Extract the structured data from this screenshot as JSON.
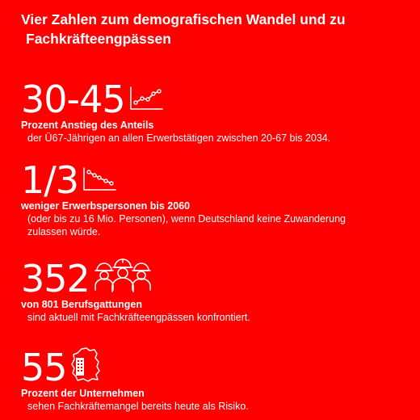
{
  "title": {
    "line1": "Vier Zahlen zum demografischen Wandel und zu",
    "line2": "Fachkräfteengpässen"
  },
  "stats": [
    {
      "number": "30-45",
      "icon": "line-chart-up-icon",
      "lead": "Prozent Anstieg des Anteils",
      "desc": [
        "der Ü67-Jährigen an allen Erwerbstätigen zwischen 20-67 bis 2034."
      ]
    },
    {
      "number": "1/3",
      "icon": "line-chart-down-icon",
      "lead": "weniger Erwerbspersonen bis 2060",
      "desc": [
        "(oder bis zu 16 Mio. Personen), wenn Deutschland keine Zuwanderung",
        "zulassen würde."
      ]
    },
    {
      "number": "352",
      "icon": "workers-icon",
      "lead": "von 801 Berufsgattungen",
      "desc": [
        "sind aktuell mit Fachkräfteengpässen konfrontiert."
      ]
    },
    {
      "number": "55",
      "icon": "germany-map-building-icon",
      "lead": "Prozent der Unternehmen",
      "desc": [
        "sehen Fachkräftemangel bereits heute als Risiko."
      ]
    }
  ]
}
